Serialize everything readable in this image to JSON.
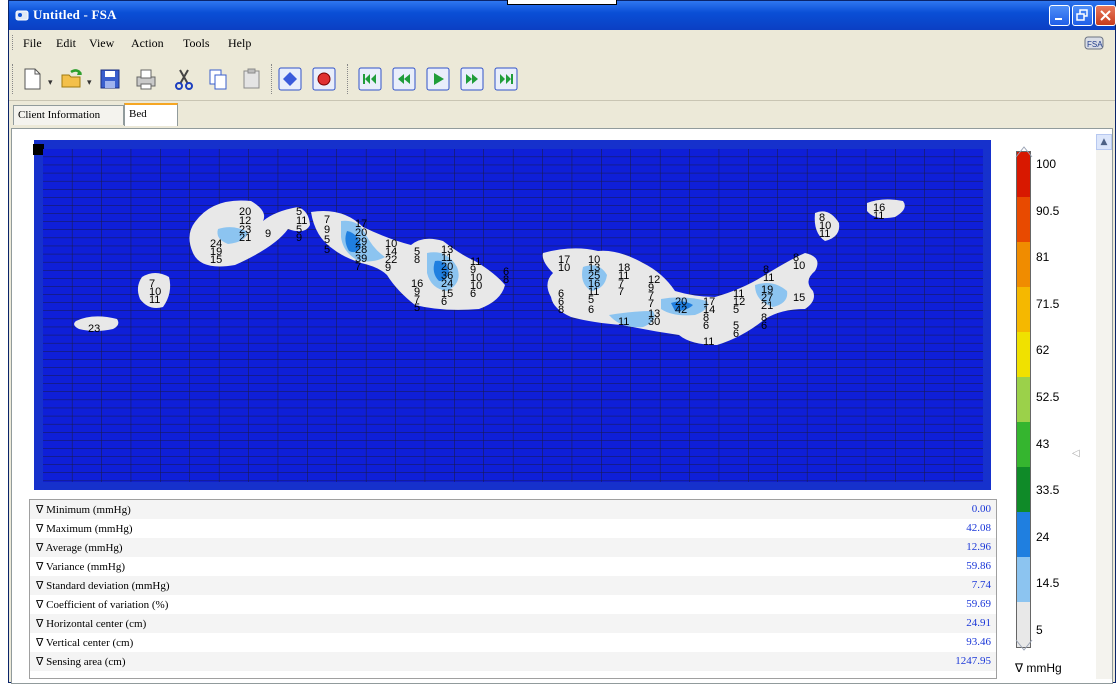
{
  "window": {
    "title": "Untitled - FSA"
  },
  "menu": {
    "file": "File",
    "edit": "Edit",
    "view": "View",
    "action": "Action",
    "tools": "Tools",
    "help": "Help"
  },
  "tabs": {
    "client": "Client Information",
    "bed": "Bed"
  },
  "stats": [
    {
      "label": "∇ Minimum (mmHg)",
      "value": "0.00"
    },
    {
      "label": "∇ Maximum (mmHg)",
      "value": "42.08"
    },
    {
      "label": "∇ Average (mmHg)",
      "value": "12.96"
    },
    {
      "label": "∇ Variance (mmHg)",
      "value": "59.86"
    },
    {
      "label": "∇ Standard deviation (mmHg)",
      "value": "7.74"
    },
    {
      "label": "∇ Coefficient of variation (%)",
      "value": "59.69"
    },
    {
      "label": "∇ Horizontal center (cm)",
      "value": "24.91"
    },
    {
      "label": "∇ Vertical center (cm)",
      "value": "93.46"
    },
    {
      "label": "∇ Sensing area (cm)",
      "value": "1247.95"
    }
  ],
  "colorscale": {
    "labels": [
      "100",
      "90.5",
      "81",
      "71.5",
      "62",
      "52.5",
      "43",
      "33.5",
      "24",
      "14.5",
      "5"
    ],
    "colors": [
      "#e8e8e8",
      "#8cc4f0",
      "#1f7fe0",
      "#0f8a28",
      "#35b52f",
      "#9bd14a",
      "#f0e100",
      "#f5b800",
      "#f08c00",
      "#e84a00",
      "#d81800"
    ],
    "unit": "∇ mmHg",
    "upper_marker": 100,
    "lower_marker": 52.5
  },
  "bed": {
    "frame_color": "#1631cc",
    "bed_color": "#0f1fd8",
    "pressure_readings": [
      {
        "text": "20"
      },
      {
        "text": "12"
      },
      {
        "text": "23"
      },
      {
        "text": "21"
      },
      {
        "text": "24"
      },
      {
        "text": "19"
      },
      {
        "text": "15"
      },
      {
        "text": "9"
      },
      {
        "text": "5"
      },
      {
        "text": "11"
      },
      {
        "text": "5"
      },
      {
        "text": "9"
      },
      {
        "text": "7"
      },
      {
        "text": "9"
      },
      {
        "text": "5"
      },
      {
        "text": "5"
      },
      {
        "text": "17"
      },
      {
        "text": "20"
      },
      {
        "text": "29"
      },
      {
        "text": "28"
      },
      {
        "text": "39"
      },
      {
        "text": "7"
      },
      {
        "text": "10"
      },
      {
        "text": "14"
      },
      {
        "text": "22"
      },
      {
        "text": "9"
      },
      {
        "text": "5"
      },
      {
        "text": "8"
      },
      {
        "text": "13"
      },
      {
        "text": "11"
      },
      {
        "text": "20"
      },
      {
        "text": "36"
      },
      {
        "text": "24"
      },
      {
        "text": "15"
      },
      {
        "text": "6"
      },
      {
        "text": "11"
      },
      {
        "text": "9"
      },
      {
        "text": "10"
      },
      {
        "text": "10"
      },
      {
        "text": "6"
      },
      {
        "text": "6"
      },
      {
        "text": "8"
      },
      {
        "text": "16"
      },
      {
        "text": "9"
      },
      {
        "text": "7"
      },
      {
        "text": "5"
      },
      {
        "text": "7"
      },
      {
        "text": "10"
      },
      {
        "text": "11"
      },
      {
        "text": "23"
      },
      {
        "text": "17"
      },
      {
        "text": "10"
      },
      {
        "text": "10"
      },
      {
        "text": "13"
      },
      {
        "text": "25"
      },
      {
        "text": "16"
      },
      {
        "text": "11"
      },
      {
        "text": "5"
      },
      {
        "text": "6"
      },
      {
        "text": "18"
      },
      {
        "text": "11"
      },
      {
        "text": "7"
      },
      {
        "text": "7"
      },
      {
        "text": "6"
      },
      {
        "text": "8"
      },
      {
        "text": "6"
      },
      {
        "text": "12"
      },
      {
        "text": "9"
      },
      {
        "text": "7"
      },
      {
        "text": "7"
      },
      {
        "text": "20"
      },
      {
        "text": "42"
      },
      {
        "text": "13"
      },
      {
        "text": "30"
      },
      {
        "text": "11"
      },
      {
        "text": "17"
      },
      {
        "text": "14"
      },
      {
        "text": "8"
      },
      {
        "text": "6"
      },
      {
        "text": "11"
      },
      {
        "text": "5"
      },
      {
        "text": "11"
      },
      {
        "text": "12"
      },
      {
        "text": "5"
      },
      {
        "text": "6"
      },
      {
        "text": "8"
      },
      {
        "text": "11"
      },
      {
        "text": "19"
      },
      {
        "text": "27"
      },
      {
        "text": "21"
      },
      {
        "text": "8"
      },
      {
        "text": "6"
      },
      {
        "text": "8"
      },
      {
        "text": "10"
      },
      {
        "text": "15"
      },
      {
        "text": "8"
      },
      {
        "text": "10"
      },
      {
        "text": "11"
      },
      {
        "text": "16"
      },
      {
        "text": "11"
      }
    ]
  }
}
